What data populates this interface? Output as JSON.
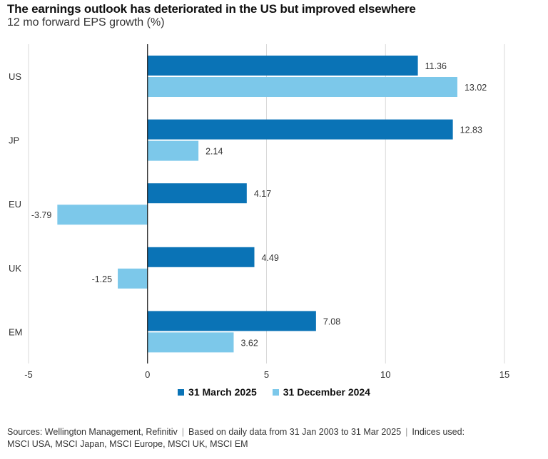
{
  "header": {
    "title": "The earnings outlook has deteriorated in the US but improved elsewhere",
    "subtitle": "12 mo forward EPS growth (%)"
  },
  "chart_data": {
    "type": "bar",
    "orientation": "horizontal",
    "categories": [
      "US",
      "JP",
      "EU",
      "UK",
      "EM"
    ],
    "series": [
      {
        "name": "31 March 2025",
        "color": "#0a73b6",
        "values": [
          11.36,
          12.83,
          4.17,
          4.49,
          7.08
        ]
      },
      {
        "name": "31 December 2024",
        "color": "#7cc8ea",
        "values": [
          13.02,
          2.14,
          -3.79,
          -1.25,
          3.62
        ]
      }
    ],
    "xlim": [
      -5,
      15
    ],
    "xticks": [
      "-5",
      "0",
      "5",
      "10",
      "15"
    ],
    "grid": true,
    "legend_position": "bottom"
  },
  "footer": {
    "sources_1": "Sources: Wellington Management, Refinitiv",
    "sources_2": "Based on daily data from 31 Jan 2003 to 31 Mar 2025",
    "sources_3": "Indices used:",
    "sources_4": "MSCI USA, MSCI Japan, MSCI Europe, MSCI UK, MSCI EM"
  }
}
